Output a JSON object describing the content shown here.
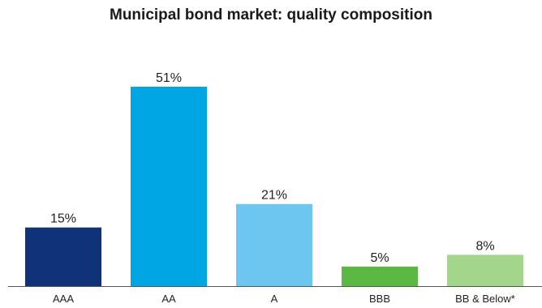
{
  "chart_data": {
    "type": "bar",
    "title": "Municipal bond market: quality composition",
    "categories": [
      "AAA",
      "AA",
      "A",
      "BBB",
      "BB & Below*"
    ],
    "values": [
      15,
      51,
      21,
      5,
      8
    ],
    "value_labels": [
      "15%",
      "51%",
      "21%",
      "5%",
      "8%"
    ],
    "colors": [
      "#0f3278",
      "#00a5e3",
      "#6cc6f0",
      "#5bb943",
      "#a3d58a"
    ],
    "xlabel": "",
    "ylabel": "",
    "ylim": [
      0,
      51
    ],
    "grid": false,
    "legend": "none"
  }
}
